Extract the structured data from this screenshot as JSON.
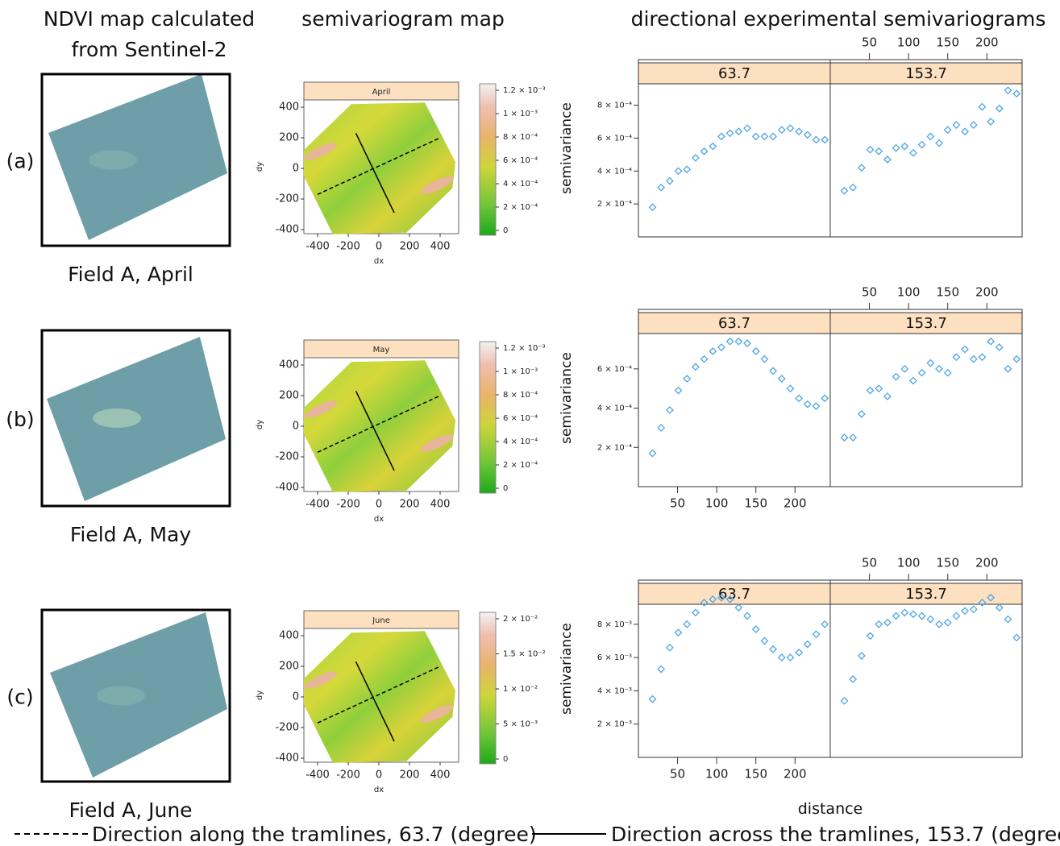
{
  "headers": {
    "ndvi": [
      "NDVI map calculated",
      "from Sentinel-2"
    ],
    "map": "semivariogram map",
    "semivariograms": "directional experimental semivariograms"
  },
  "rows": [
    {
      "label": "(a)",
      "caption": "Field A, April"
    },
    {
      "label": "(b)",
      "caption": "Field A, May"
    },
    {
      "label": "(c)",
      "caption": "Field A, June"
    }
  ],
  "maps": [
    {
      "strip": "April",
      "xlabel": "dx",
      "ylabel": "dy",
      "xticks": [
        -400,
        -200,
        0,
        200,
        400
      ],
      "yticks": [
        400,
        200,
        0,
        -200,
        -400
      ],
      "colorbar": [
        "1.2 × 10⁻³",
        "1 × 10⁻³",
        "8 × 10⁻⁴",
        "6 × 10⁻⁴",
        "4 × 10⁻⁴",
        "2 × 10⁻⁴",
        "0"
      ]
    },
    {
      "strip": "May",
      "xlabel": "dx",
      "ylabel": "dy",
      "xticks": [
        -400,
        -200,
        0,
        200,
        400
      ],
      "yticks": [
        400,
        200,
        0,
        -200,
        -400
      ],
      "colorbar": [
        "1.2 × 10⁻³",
        "1 × 10⁻³",
        "8 × 10⁻⁴",
        "6 × 10⁻⁴",
        "4 × 10⁻⁴",
        "2 × 10⁻⁴",
        "0"
      ]
    },
    {
      "strip": "June",
      "xlabel": "dx",
      "ylabel": "dy",
      "xticks": [
        -400,
        -200,
        0,
        200,
        400
      ],
      "yticks": [
        400,
        200,
        0,
        -200,
        -400
      ],
      "colorbar": [
        "2 × 10⁻²",
        "1.5 × 10⁻²",
        "1 × 10⁻²",
        "5 × 10⁻³",
        "0"
      ]
    }
  ],
  "legend": {
    "along": "Direction along the tramlines, 63.7 (degree)",
    "across": "Direction across the tramlines, 153.7 (degree)"
  },
  "chart_data": [
    {
      "type": "scatter",
      "title": "63.7",
      "ylabel": "semivariance",
      "color": "#4da6e8",
      "x": [
        18,
        29,
        40,
        51,
        62,
        73,
        84,
        95,
        106,
        117,
        128,
        139,
        150,
        161,
        172,
        183,
        194,
        205,
        216,
        227,
        238
      ],
      "values": [
        0.00018,
        0.0003,
        0.00034,
        0.0004,
        0.00041,
        0.00048,
        0.00052,
        0.00055,
        0.00061,
        0.00063,
        0.00064,
        0.00066,
        0.00061,
        0.00061,
        0.00061,
        0.00065,
        0.00066,
        0.00064,
        0.00062,
        0.00059,
        0.00059
      ],
      "xlim": [
        0,
        245
      ],
      "ylim": [
        0,
        0.00093
      ],
      "yticks": [
        {
          "value": 0.0002,
          "label": "2 × 10⁻⁴"
        },
        {
          "value": 0.0004,
          "label": "4 × 10⁻⁴"
        },
        {
          "value": 0.0006,
          "label": "6 × 10⁻⁴"
        },
        {
          "value": 0.0008,
          "label": "8 × 10⁻⁴"
        }
      ]
    },
    {
      "type": "scatter",
      "title": "153.7",
      "color": "#4da6e8",
      "x": [
        18,
        29,
        40,
        51,
        62,
        73,
        84,
        95,
        106,
        117,
        128,
        139,
        150,
        161,
        172,
        183,
        194,
        205,
        216,
        227,
        238
      ],
      "values": [
        0.00028,
        0.0003,
        0.00042,
        0.00053,
        0.00052,
        0.00047,
        0.00054,
        0.00055,
        0.00051,
        0.00056,
        0.00061,
        0.00057,
        0.00065,
        0.00068,
        0.00064,
        0.00068,
        0.00079,
        0.0007,
        0.00078,
        0.00089,
        0.00087
      ],
      "xlim": [
        0,
        245
      ],
      "ylim": [
        0,
        0.00093
      ],
      "xticks": [
        50,
        100,
        150,
        200
      ]
    },
    {
      "type": "scatter",
      "title": "63.7",
      "ylabel": "semivariance",
      "color": "#4da6e8",
      "x": [
        18,
        29,
        40,
        51,
        62,
        73,
        84,
        95,
        106,
        117,
        128,
        139,
        150,
        161,
        172,
        183,
        194,
        205,
        216,
        227,
        238
      ],
      "values": [
        0.00017,
        0.0003,
        0.00039,
        0.00049,
        0.00055,
        0.00061,
        0.00065,
        0.00069,
        0.00071,
        0.00074,
        0.00074,
        0.00073,
        0.00069,
        0.00065,
        0.00059,
        0.00055,
        0.0005,
        0.00045,
        0.00042,
        0.00041,
        0.00045
      ],
      "xlim": [
        0,
        245
      ],
      "ylim": [
        0,
        0.00078
      ],
      "xticks": [
        50,
        100,
        150,
        200
      ],
      "yticks": [
        {
          "value": 0.0002,
          "label": "2 × 10⁻⁴"
        },
        {
          "value": 0.0004,
          "label": "4 × 10⁻⁴"
        },
        {
          "value": 0.0006,
          "label": "6 × 10⁻⁴"
        }
      ]
    },
    {
      "type": "scatter",
      "title": "153.7",
      "color": "#4da6e8",
      "x": [
        18,
        29,
        40,
        51,
        62,
        73,
        84,
        95,
        106,
        117,
        128,
        139,
        150,
        161,
        172,
        183,
        194,
        205,
        216,
        227,
        238
      ],
      "values": [
        0.00025,
        0.00025,
        0.00037,
        0.00049,
        0.0005,
        0.00046,
        0.00056,
        0.0006,
        0.00054,
        0.00058,
        0.00063,
        0.0006,
        0.00058,
        0.00066,
        0.0007,
        0.00065,
        0.00066,
        0.00074,
        0.00071,
        0.0006,
        0.00065
      ],
      "xlim": [
        0,
        245
      ],
      "ylim": [
        0,
        0.00078
      ],
      "xticks": [
        50,
        100,
        150,
        200
      ]
    },
    {
      "type": "scatter",
      "title": "63.7",
      "ylabel": "semivariance",
      "xlabel": "distance",
      "color": "#4da6e8",
      "x": [
        18,
        29,
        40,
        51,
        62,
        73,
        84,
        95,
        106,
        117,
        128,
        139,
        150,
        161,
        172,
        183,
        194,
        205,
        216,
        227,
        238
      ],
      "values": [
        0.0035,
        0.0053,
        0.0066,
        0.0075,
        0.008,
        0.0087,
        0.0093,
        0.0095,
        0.0096,
        0.0095,
        0.009,
        0.0085,
        0.0077,
        0.007,
        0.0065,
        0.006,
        0.006,
        0.0063,
        0.0068,
        0.0074,
        0.008
      ],
      "xlim": [
        0,
        245
      ],
      "ylim": [
        0,
        0.0092
      ],
      "xticks": [
        50,
        100,
        150,
        200
      ],
      "yticks": [
        {
          "value": 0.002,
          "label": "2 × 10⁻³"
        },
        {
          "value": 0.004,
          "label": "4 × 10⁻³"
        },
        {
          "value": 0.006,
          "label": "6 × 10⁻³"
        },
        {
          "value": 0.008,
          "label": "8 × 10⁻³"
        }
      ]
    },
    {
      "type": "scatter",
      "title": "153.7",
      "color": "#4da6e8",
      "x": [
        18,
        29,
        40,
        51,
        62,
        73,
        84,
        95,
        106,
        117,
        128,
        139,
        150,
        161,
        172,
        183,
        194,
        205,
        216,
        227,
        238
      ],
      "values": [
        0.0034,
        0.0047,
        0.0061,
        0.0073,
        0.008,
        0.0081,
        0.0085,
        0.0087,
        0.0086,
        0.0085,
        0.0083,
        0.008,
        0.0081,
        0.0085,
        0.0088,
        0.0089,
        0.0093,
        0.0096,
        0.009,
        0.0083,
        0.0072
      ],
      "xlim": [
        0,
        245
      ],
      "ylim": [
        0,
        0.0092
      ],
      "xticks": [
        50,
        100,
        150,
        200
      ]
    }
  ]
}
